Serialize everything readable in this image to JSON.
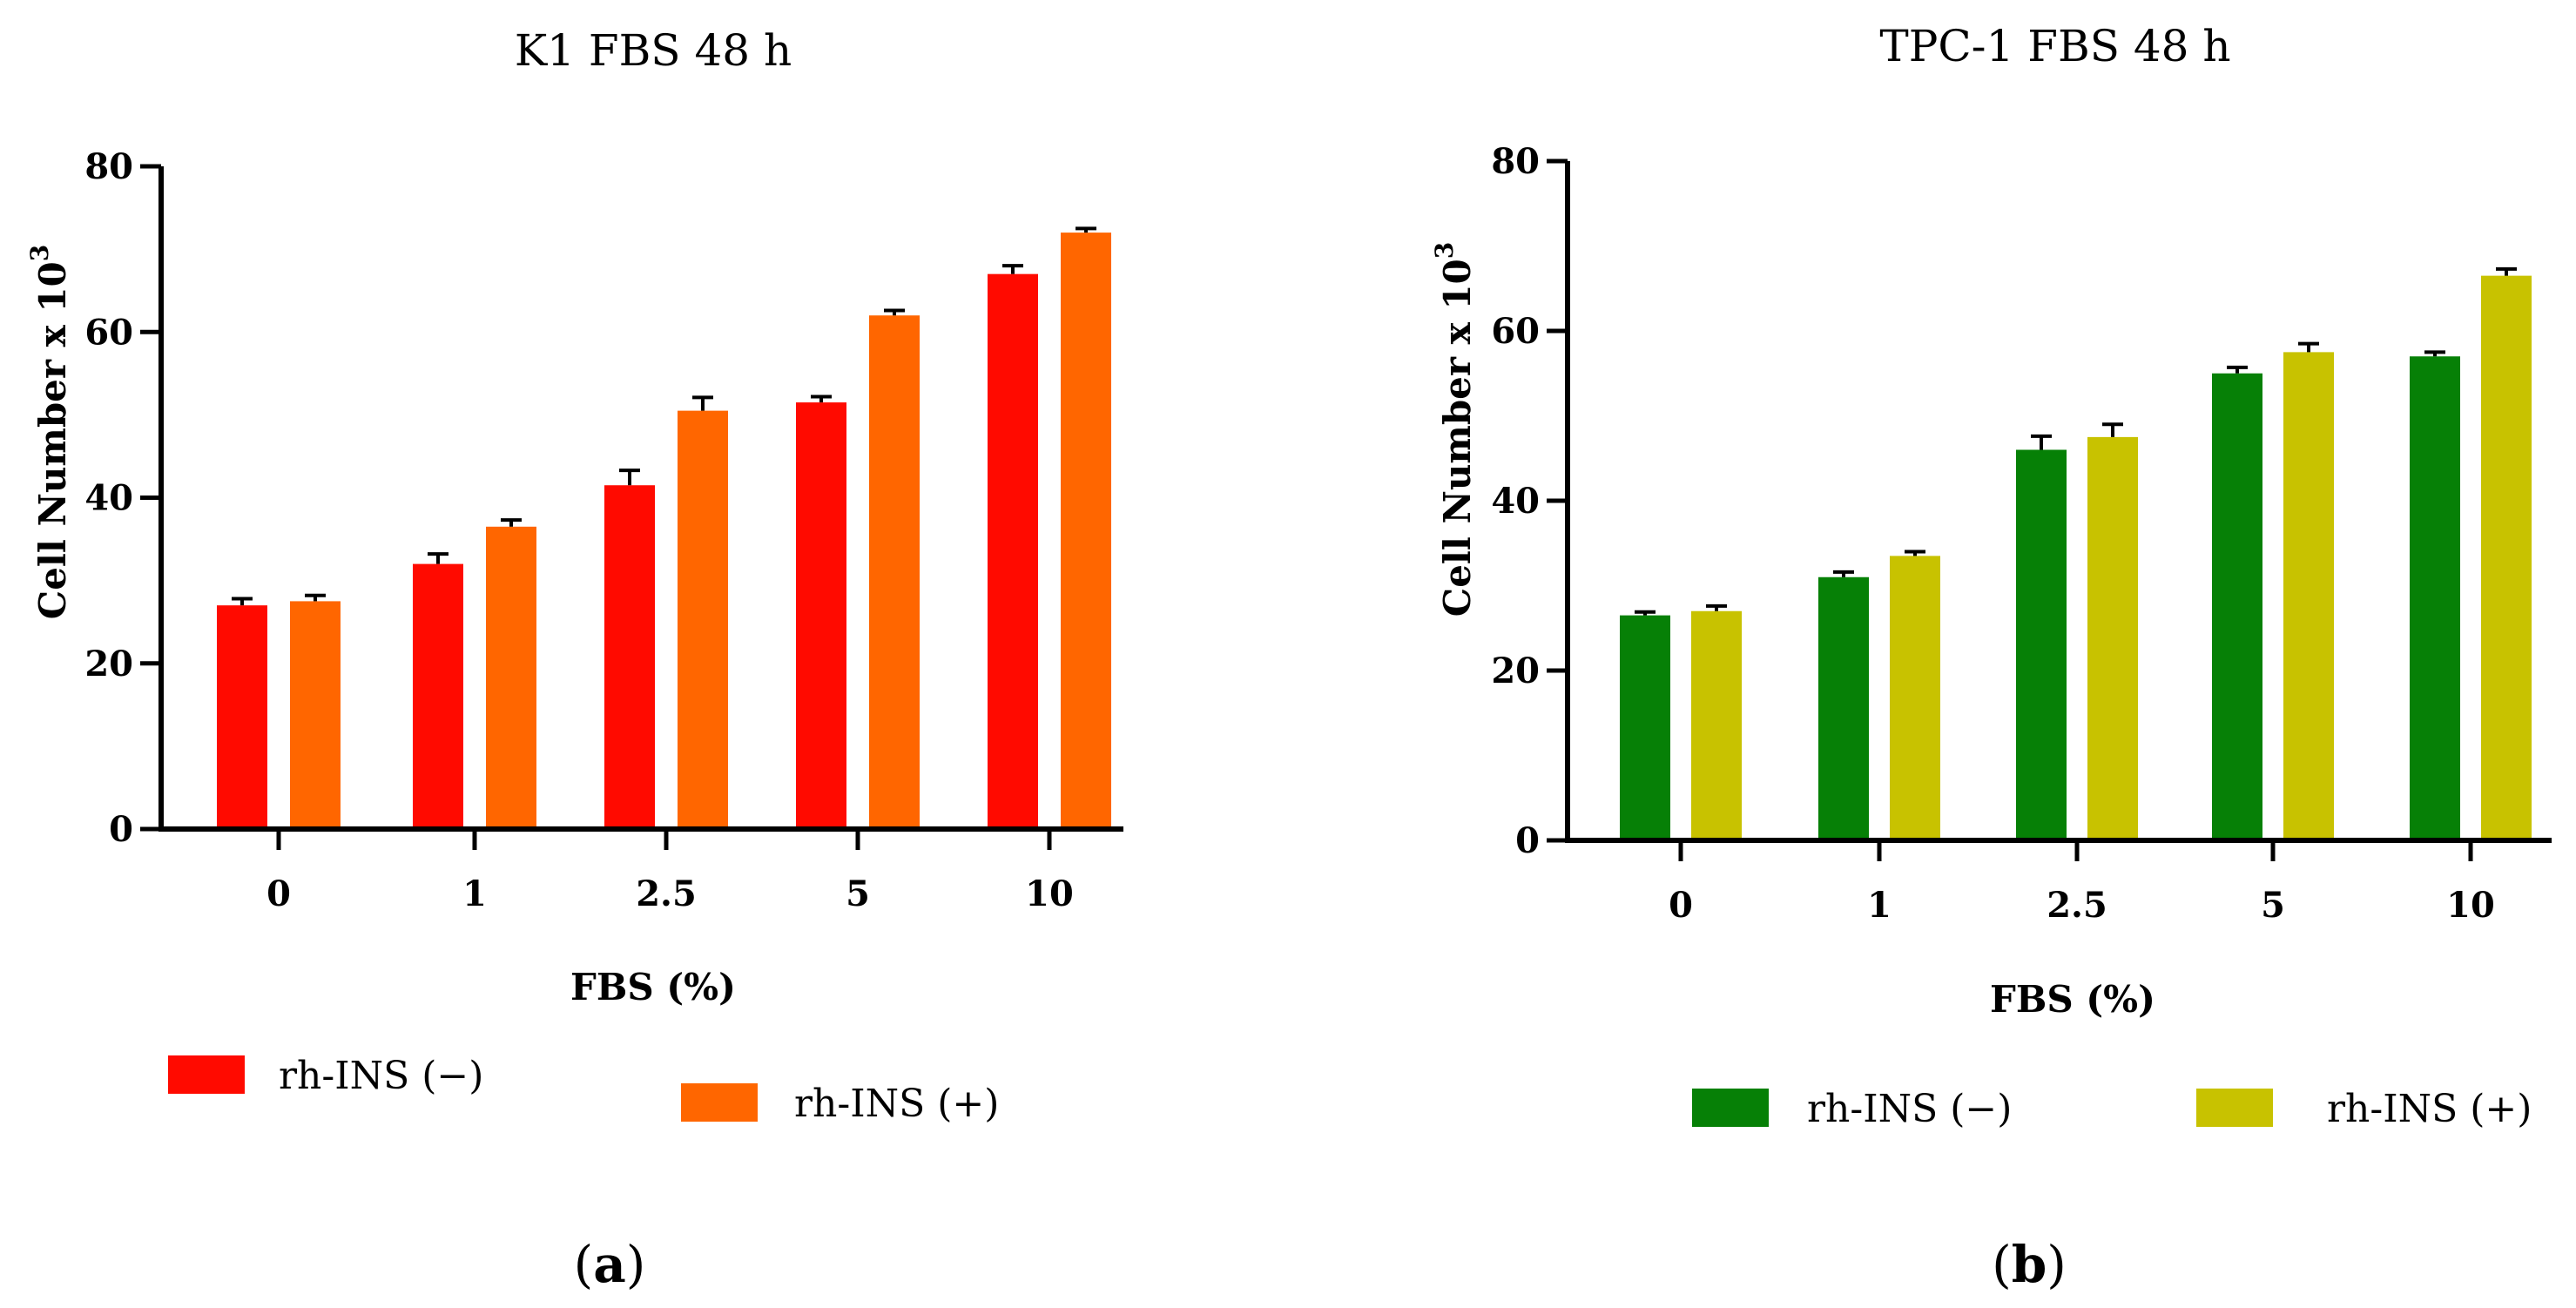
{
  "chart_data": [
    {
      "type": "bar",
      "title": "K1 FBS 48 h",
      "xlabel": "FBS (%)",
      "ylabel": "Cell Number x 10",
      "ylabel_sup": "3",
      "categories": [
        "0",
        "1",
        "2.5",
        "5",
        "10"
      ],
      "ylim": [
        0,
        80
      ],
      "yticks": [
        "0",
        "20",
        "40",
        "60",
        "80"
      ],
      "series": [
        {
          "name": "rh-INS (−)",
          "color": "#ff0a00",
          "values": [
            27,
            32,
            41.5,
            51.5,
            67
          ],
          "errors": [
            0.8,
            1.2,
            1.8,
            0.7,
            1.0
          ]
        },
        {
          "name": "rh-INS (+)",
          "color": "#ff6600",
          "values": [
            27.5,
            36.5,
            50.5,
            62,
            72
          ],
          "errors": [
            0.7,
            0.8,
            1.6,
            0.6,
            0.5
          ]
        }
      ],
      "panel_label": "a"
    },
    {
      "type": "bar",
      "title": "TPC-1 FBS 48 h",
      "xlabel": "FBS (%)",
      "ylabel": "Cell Number x 10",
      "ylabel_sup": "3",
      "categories": [
        "0",
        "1",
        "2.5",
        "5",
        "10"
      ],
      "ylim": [
        0,
        80
      ],
      "yticks": [
        "0",
        "20",
        "40",
        "60",
        "80"
      ],
      "series": [
        {
          "name": "rh-INS (−)",
          "color": "#068006",
          "values": [
            26.5,
            31,
            46,
            55,
            57
          ],
          "errors": [
            0.4,
            0.6,
            1.6,
            0.7,
            0.5
          ]
        },
        {
          "name": "rh-INS (+)",
          "color": "#c8c200",
          "values": [
            27,
            33.5,
            47.5,
            57.5,
            66.5
          ],
          "errors": [
            0.6,
            0.5,
            1.5,
            1.0,
            0.8
          ]
        }
      ],
      "panel_label": "b"
    }
  ]
}
